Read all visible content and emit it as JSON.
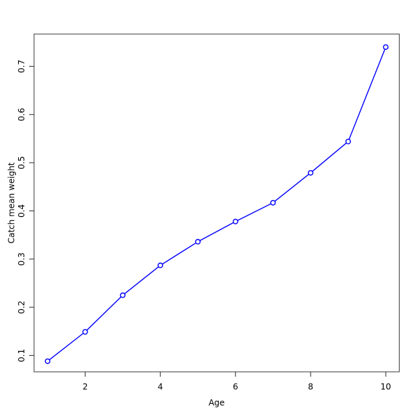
{
  "figure": {
    "background": "#ffffff",
    "axis_color": "#3a3a3a",
    "text_color": "#000000"
  },
  "chart_data": {
    "type": "line",
    "title": "",
    "xlabel": "Age",
    "ylabel": "Catch mean weight",
    "x": [
      1,
      2,
      3,
      4,
      5,
      6,
      7,
      8,
      9,
      10
    ],
    "y": [
      0.088,
      0.149,
      0.225,
      0.287,
      0.336,
      0.378,
      0.417,
      0.479,
      0.544,
      0.74
    ],
    "x_ticks": [
      2,
      4,
      6,
      8,
      10
    ],
    "x_tick_labels": [
      "2",
      "4",
      "6",
      "8",
      "10"
    ],
    "y_ticks": [
      0.1,
      0.2,
      0.3,
      0.4,
      0.5,
      0.6,
      0.7
    ],
    "y_tick_labels": [
      "0.1",
      "0.2",
      "0.3",
      "0.4",
      "0.5",
      "0.6",
      "0.7"
    ],
    "xlim": [
      0.64,
      10.36
    ],
    "ylim": [
      0.066,
      0.767
    ],
    "grid": false,
    "legend": null,
    "line_color": "#0000ff",
    "marker": "open-circle",
    "marker_fill": "#ffffff",
    "marker_radius": 3.3
  }
}
